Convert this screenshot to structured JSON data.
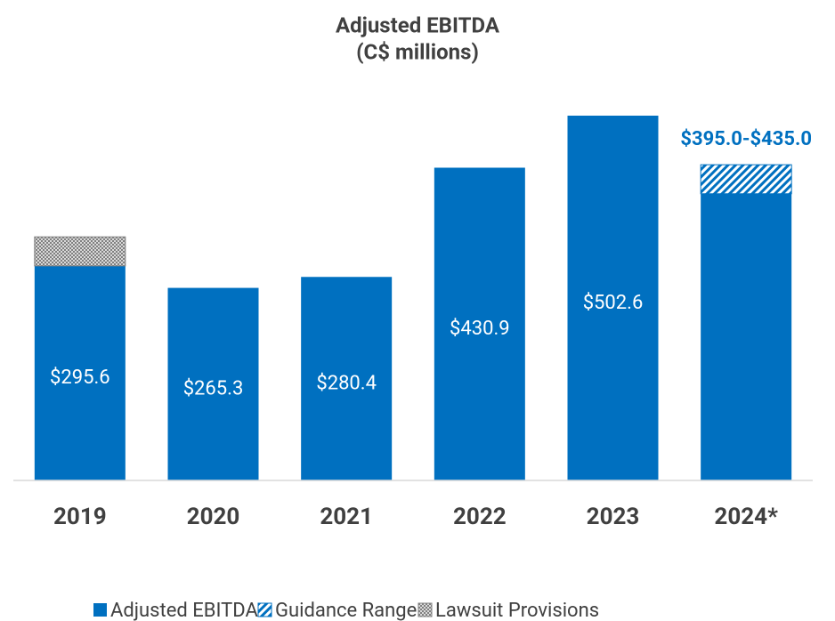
{
  "chart_data": {
    "type": "stacked_bar",
    "title": "Adjusted EBITDA",
    "subtitle": "(C$ millions)",
    "annotation": "$395.0-$435.0",
    "categories": [
      "2019",
      "2020",
      "2021",
      "2022",
      "2023",
      "2024*"
    ],
    "series": [
      {
        "name": "Adjusted EBITDA",
        "color": "#0070c0",
        "pattern": "solid",
        "values": [
          295.6,
          265.3,
          280.4,
          430.9,
          502.6,
          395.0
        ],
        "value_labels": [
          "$295.6",
          "$265.3",
          "$280.4",
          "$430.9",
          "$502.6",
          null
        ]
      },
      {
        "name": "Guidance Range",
        "color": "#0070c0",
        "pattern": "diagonal",
        "values": [
          null,
          null,
          null,
          null,
          null,
          40
        ]
      },
      {
        "name": "Lawsuit Provisions",
        "color": "#808080",
        "pattern": "checker",
        "values": [
          40,
          null,
          null,
          null,
          null,
          null
        ]
      }
    ],
    "legend": "bottom",
    "grid": false
  }
}
